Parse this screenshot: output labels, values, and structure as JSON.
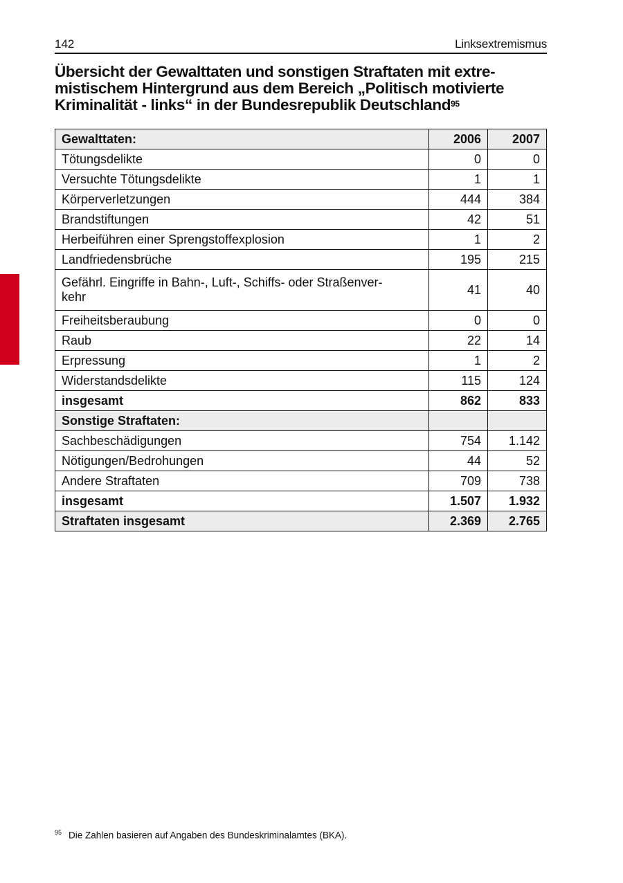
{
  "header": {
    "page_number": "142",
    "section": "Linksextremismus"
  },
  "accent_color": "#d0021b",
  "title": {
    "text": "Übersicht der Gewalttaten und sonstigen Straftaten mit extre-mistischem Hintergrund aus dem Bereich „Politisch motivierte Kriminalität - links“ in der Bundesrepublik Deutschland",
    "line1": "Übersicht der Gewalttaten und sonstigen Straftaten mit extre-",
    "line2": "mistischem Hintergrund aus dem Bereich „Politisch motivierte",
    "line3": "Kriminalität - links“ in der Bundesrepublik Deutschland",
    "footnote_ref": "95"
  },
  "table": {
    "columns": [
      "Gewalttaten:",
      "2006",
      "2007"
    ],
    "rows": [
      {
        "label": "Tötungsdelikte",
        "v2006": "0",
        "v2007": "0"
      },
      {
        "label": "Versuchte Tötungsdelikte",
        "v2006": "1",
        "v2007": "1"
      },
      {
        "label": "Körperverletzungen",
        "v2006": "444",
        "v2007": "384"
      },
      {
        "label": "Brandstiftungen",
        "v2006": "42",
        "v2007": "51"
      },
      {
        "label": "Herbeiführen einer Sprengstoffexplosion",
        "v2006": "1",
        "v2007": "2"
      },
      {
        "label": "Landfriedensbrüche",
        "v2006": "195",
        "v2007": "215"
      },
      {
        "label": "Gefährl. Eingriffe in Bahn-, Luft-, Schiffs- oder Straßenver-kehr",
        "line1": "Gefährl. Eingriffe in Bahn-, Luft-, Schiffs- oder Straßenver-",
        "line2": "kehr",
        "v2006": "41",
        "v2007": "40"
      },
      {
        "label": "Freiheitsberaubung",
        "v2006": "0",
        "v2007": "0"
      },
      {
        "label": "Raub",
        "v2006": "22",
        "v2007": "14"
      },
      {
        "label": "Erpressung",
        "v2006": "1",
        "v2007": "2"
      },
      {
        "label": "Widerstandsdelikte",
        "v2006": "115",
        "v2007": "124"
      },
      {
        "label": "insgesamt",
        "v2006": "862",
        "v2007": "833"
      },
      {
        "label": "Sonstige Straftaten:",
        "v2006": "",
        "v2007": ""
      },
      {
        "label": "Sachbeschädigungen",
        "v2006": "754",
        "v2007": "1.142"
      },
      {
        "label": "Nötigungen/Bedrohungen",
        "v2006": "44",
        "v2007": "52"
      },
      {
        "label": "Andere Straftaten",
        "v2006": "709",
        "v2007": "738"
      },
      {
        "label": "insgesamt",
        "v2006": "1.507",
        "v2007": "1.932"
      },
      {
        "label": "Straftaten insgesamt",
        "v2006": "2.369",
        "v2007": "2.765"
      }
    ]
  },
  "footnote": {
    "number": "95",
    "text": "Die Zahlen basieren auf Angaben des Bundeskriminalamtes (BKA)."
  }
}
